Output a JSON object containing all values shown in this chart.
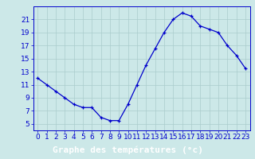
{
  "hours": [
    0,
    1,
    2,
    3,
    4,
    5,
    6,
    7,
    8,
    9,
    10,
    11,
    12,
    13,
    14,
    15,
    16,
    17,
    18,
    19,
    20,
    21,
    22,
    23
  ],
  "temps": [
    12.0,
    11.0,
    10.0,
    9.0,
    8.0,
    7.5,
    7.5,
    6.0,
    5.5,
    5.5,
    8.0,
    11.0,
    14.0,
    16.5,
    19.0,
    21.0,
    22.0,
    21.5,
    20.0,
    19.5,
    19.0,
    17.0,
    15.5,
    13.5
  ],
  "xlim": [
    -0.5,
    23.5
  ],
  "ylim": [
    4,
    23
  ],
  "yticks": [
    5,
    7,
    9,
    11,
    13,
    15,
    17,
    19,
    21
  ],
  "xticks": [
    0,
    1,
    2,
    3,
    4,
    5,
    6,
    7,
    8,
    9,
    10,
    11,
    12,
    13,
    14,
    15,
    16,
    17,
    18,
    19,
    20,
    21,
    22,
    23
  ],
  "xlabel": "Graphe des températures (°c)",
  "line_color": "#0000cc",
  "marker": "+",
  "bg_color": "#cce8e8",
  "grid_color": "#aacccc",
  "axis_color": "#0000cc",
  "tick_label_color": "#0000cc",
  "xlabel_bg": "#0000cc",
  "xlabel_text_color": "#ffffff",
  "tick_fontsize": 6.5,
  "xlabel_fontsize": 8
}
